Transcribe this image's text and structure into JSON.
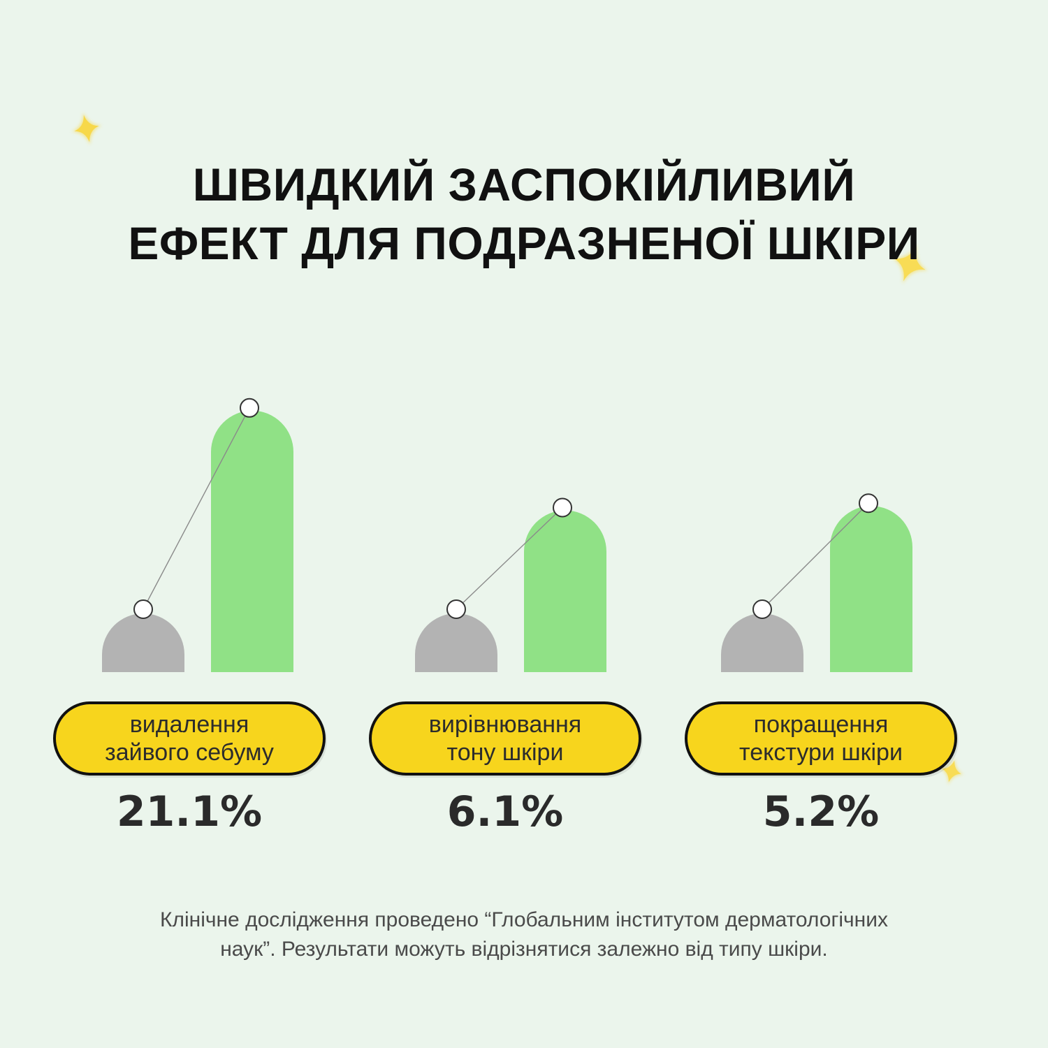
{
  "title": {
    "line1": "ШВИДКИЙ ЗАСПОКІЙЛИВИЙ",
    "line2": "ЕФЕКТ ДЛЯ ПОДРАЗНЕНОЇ ШКІРИ"
  },
  "chart_data": {
    "type": "bar",
    "categories": [
      [
        "видалення",
        "зайвого себуму"
      ],
      [
        "вирівнювання",
        "тону шкіри"
      ],
      [
        "покращення",
        "текстури шкіри"
      ]
    ],
    "percent_labels": [
      "21.1%",
      "6.1%",
      "5.2%"
    ],
    "series": [
      {
        "values": [
          1.0,
          1.0,
          1.0
        ],
        "color": "#b3b3b3"
      },
      {
        "values": [
          1.211,
          1.061,
          1.052
        ],
        "color": "#90e186"
      }
    ],
    "connector_markers": true,
    "axes": false,
    "grid": false,
    "legend": false
  },
  "colors": {
    "background": "#ebf5ec",
    "label_pill": "#f7d51d",
    "star": "#f7d84a"
  },
  "footnote": {
    "line1": "Клінічне дослідження проведено “Глобальним інститутом дерматологічних",
    "line2": "наук”. Результати можуть відрізнятися залежно від типу шкіри."
  },
  "decorations": [
    "sparkle-icon",
    "sparkle-icon",
    "sparkle-icon"
  ]
}
